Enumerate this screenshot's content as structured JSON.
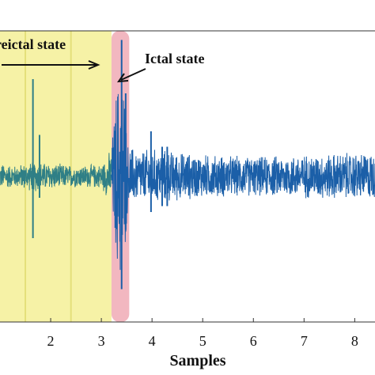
{
  "chart_data": {
    "type": "line",
    "xlabel": "Samples",
    "xlim": [
      1.0,
      8.4
    ],
    "ylim": [
      -1.3,
      1.3
    ],
    "xticks": [
      "2",
      "3",
      "4",
      "5",
      "6",
      "7",
      "8"
    ],
    "grid": false,
    "regions": [
      {
        "name": "preictal",
        "label": "reictal state",
        "x_start": 1.0,
        "x_end": 3.2,
        "color": "#f6f2a6"
      },
      {
        "name": "ictal",
        "label": "Ictal state",
        "x_start": 3.2,
        "x_end": 3.55,
        "color": "#f2b7c0"
      }
    ],
    "signal_envelope": [
      {
        "x": 1.0,
        "amp": 0.12
      },
      {
        "x": 1.3,
        "amp": 0.1
      },
      {
        "x": 1.7,
        "amp": 0.14
      },
      {
        "x": 2.0,
        "amp": 0.12
      },
      {
        "x": 2.5,
        "amp": 0.1
      },
      {
        "x": 3.0,
        "amp": 0.11
      },
      {
        "x": 3.2,
        "amp": 0.25
      },
      {
        "x": 3.3,
        "amp": 0.85
      },
      {
        "x": 3.42,
        "amp": 1.05
      },
      {
        "x": 3.52,
        "amp": 0.3
      },
      {
        "x": 3.7,
        "amp": 0.24
      },
      {
        "x": 4.0,
        "amp": 0.25
      },
      {
        "x": 5.0,
        "amp": 0.2
      },
      {
        "x": 6.0,
        "amp": 0.18
      },
      {
        "x": 7.0,
        "amp": 0.2
      },
      {
        "x": 8.0,
        "amp": 0.22
      },
      {
        "x": 8.4,
        "amp": 0.22
      }
    ],
    "spikes": [
      {
        "x": 1.65,
        "y_min": -0.52,
        "y_max": 0.82
      },
      {
        "x": 1.78,
        "y_min": -0.18,
        "y_max": 0.35
      },
      {
        "x": 3.4,
        "y_min": -0.95,
        "y_max": 1.15
      },
      {
        "x": 3.48,
        "y_min": -0.45,
        "y_max": 0.7
      },
      {
        "x": 3.98,
        "y_min": -0.3,
        "y_max": 0.38
      },
      {
        "x": 4.2,
        "y_min": -0.25,
        "y_max": 0.25
      },
      {
        "x": 4.3,
        "y_min": -0.25,
        "y_max": 0.25
      }
    ],
    "line_color_preictal": "#2f7f86",
    "line_color": "#1b5fa8"
  }
}
